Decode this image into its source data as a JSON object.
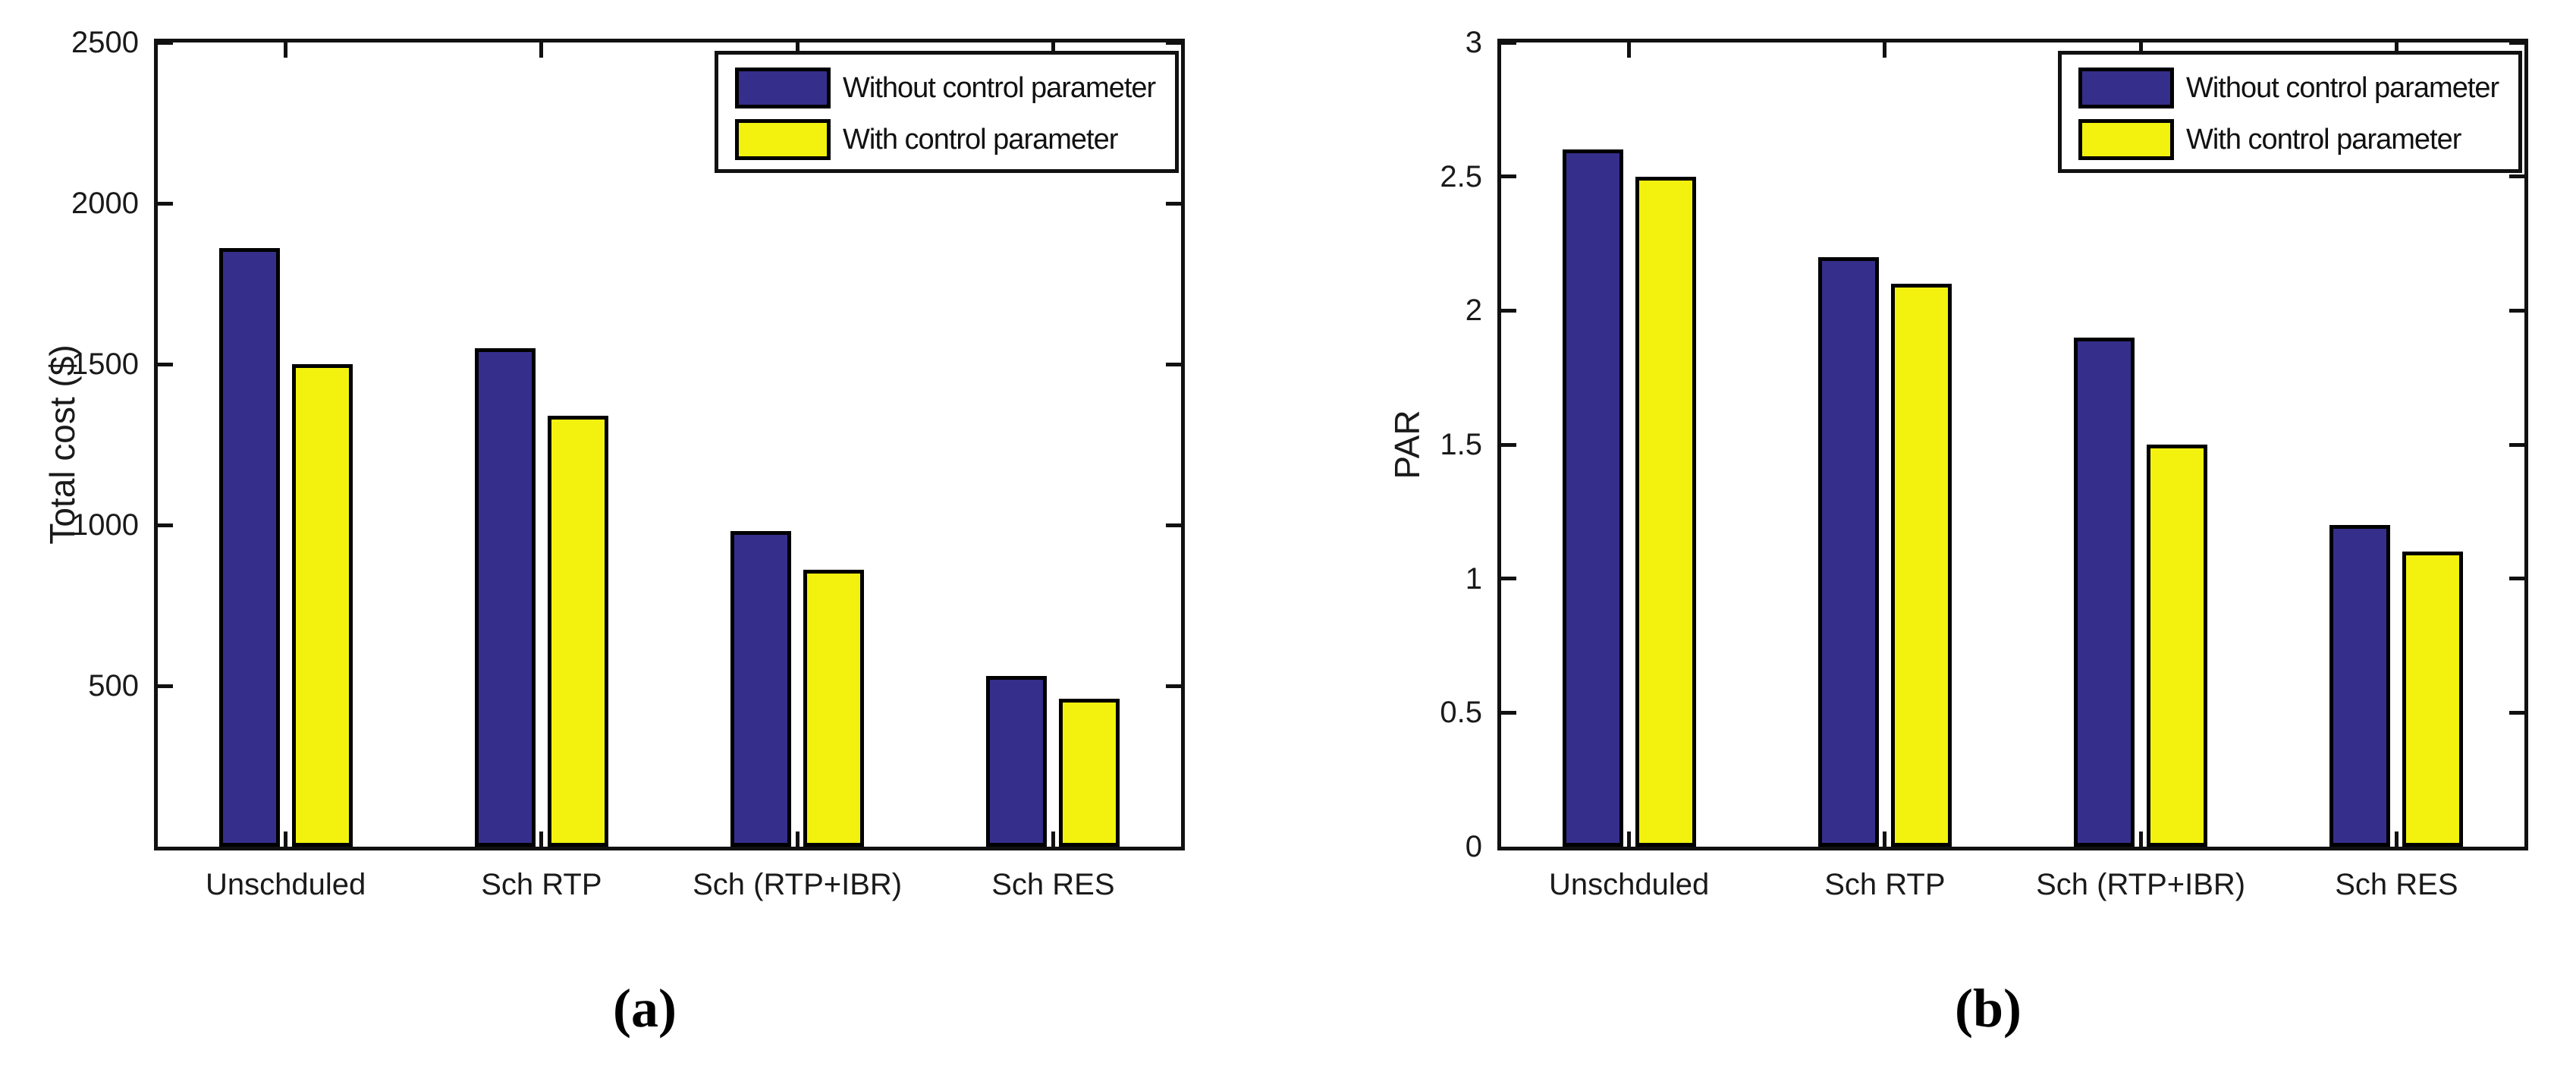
{
  "chart_data": [
    {
      "type": "bar",
      "title": "",
      "xlabel": "",
      "ylabel": "Total cost ($)",
      "caption": "(a)",
      "categories": [
        "Unschduled",
        "Sch RTP",
        "Sch (RTP+IBR)",
        "Sch RES"
      ],
      "series": [
        {
          "name": "Without control parameter",
          "color": "#352E8B",
          "values": [
            1860,
            1550,
            980,
            530
          ]
        },
        {
          "name": "With control parameter",
          "color": "#F2F20E",
          "values": [
            1500,
            1340,
            860,
            460
          ]
        }
      ],
      "ylim": [
        0,
        2500
      ],
      "yticks": [
        500,
        1000,
        1500,
        2000,
        2500
      ],
      "ytick_labels": [
        "500",
        "1000",
        "1500",
        "2000",
        "2500"
      ],
      "legend_position": "top-right",
      "grid": false
    },
    {
      "type": "bar",
      "title": "",
      "xlabel": "",
      "ylabel": "PAR",
      "caption": "(b)",
      "categories": [
        "Unschduled",
        "Sch RTP",
        "Sch (RTP+IBR)",
        "Sch RES"
      ],
      "series": [
        {
          "name": "Without control parameter",
          "color": "#352E8B",
          "values": [
            2.6,
            2.2,
            1.9,
            1.2
          ]
        },
        {
          "name": "With control parameter",
          "color": "#F2F20E",
          "values": [
            2.5,
            2.1,
            1.5,
            1.1
          ]
        }
      ],
      "ylim": [
        0,
        3
      ],
      "yticks": [
        0,
        0.5,
        1,
        1.5,
        2,
        2.5,
        3
      ],
      "ytick_labels": [
        "0",
        "0.5",
        "1",
        "1.5",
        "2",
        "2.5",
        "3"
      ],
      "legend_position": "top-right",
      "grid": false
    }
  ]
}
